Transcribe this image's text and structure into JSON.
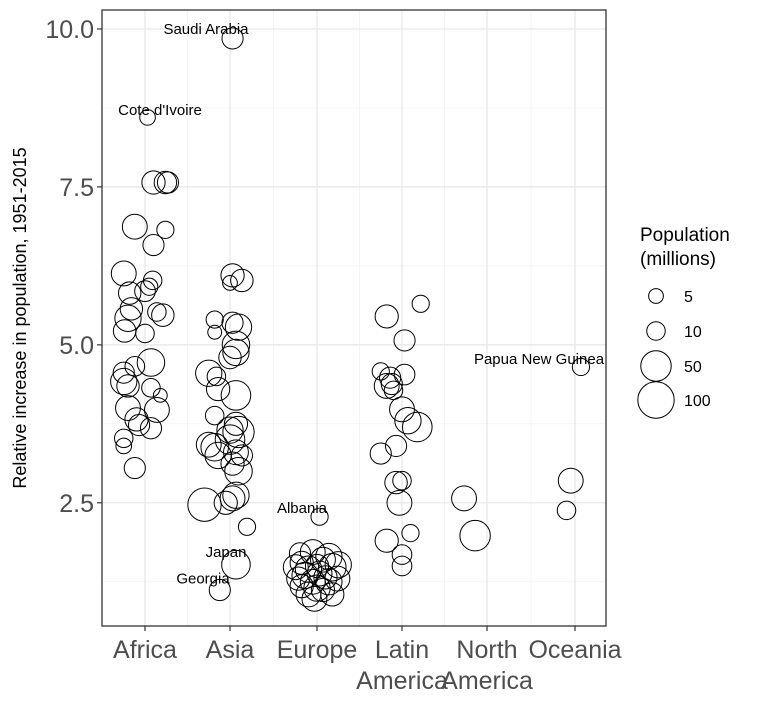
{
  "chart_data": {
    "type": "scatter",
    "ylabel": "Relative increase in population, 1951-2015",
    "xlabel": "",
    "ylim": [
      0.55,
      10.3
    ],
    "yticks": [
      2.5,
      5.0,
      7.5,
      10.0
    ],
    "ytick_labels": [
      "2.5",
      "5.0",
      "7.5",
      "10.0"
    ],
    "categories": [
      {
        "name": "Africa",
        "lines": [
          "Africa"
        ]
      },
      {
        "name": "Asia",
        "lines": [
          "Asia"
        ]
      },
      {
        "name": "Europe",
        "lines": [
          "Europe"
        ]
      },
      {
        "name": "Latin America",
        "lines": [
          "Latin",
          "America"
        ]
      },
      {
        "name": "North America",
        "lines": [
          "North",
          "America"
        ]
      },
      {
        "name": "Oceania",
        "lines": [
          "Oceania"
        ]
      }
    ],
    "grid": true,
    "legend": {
      "title_lines": [
        "Population",
        "(millions)"
      ],
      "position": "right",
      "entries": [
        {
          "label": "5",
          "size": 5
        },
        {
          "label": "10",
          "size": 10
        },
        {
          "label": "50",
          "size": 50
        },
        {
          "label": "100",
          "size": 100
        }
      ]
    },
    "annotations": [
      {
        "label": "Saudi Arabia",
        "category": "Asia",
        "jitter": -0.55,
        "y": 10.0
      },
      {
        "label": "Cote d'Ivoire",
        "category": "Africa",
        "jitter": 0.15,
        "y": 8.72
      },
      {
        "label": "Papua New Guinea",
        "category": "Oceania",
        "jitter": -1.0,
        "y": 4.78
      },
      {
        "label": "Albania",
        "category": "Europe",
        "jitter": -0.25,
        "y": 2.42
      },
      {
        "label": "Japan",
        "category": "Asia",
        "jitter": -0.1,
        "y": 1.72
      },
      {
        "label": "Georgia",
        "category": "Asia",
        "jitter": -0.35,
        "y": 1.3
      }
    ],
    "points": [
      {
        "category": "Africa",
        "jitter": 0.03,
        "y": 8.6,
        "pop": 6
      },
      {
        "category": "Africa",
        "jitter": 0.1,
        "y": 7.57,
        "pop": 20
      },
      {
        "category": "Africa",
        "jitter": 0.24,
        "y": 7.57,
        "pop": 18
      },
      {
        "category": "Africa",
        "jitter": 0.27,
        "y": 7.57,
        "pop": 15
      },
      {
        "category": "Africa",
        "jitter": -0.12,
        "y": 6.87,
        "pop": 25
      },
      {
        "category": "Africa",
        "jitter": 0.24,
        "y": 6.82,
        "pop": 8
      },
      {
        "category": "Africa",
        "jitter": 0.1,
        "y": 6.58,
        "pop": 15
      },
      {
        "category": "Africa",
        "jitter": -0.25,
        "y": 6.13,
        "pop": 25
      },
      {
        "category": "Africa",
        "jitter": 0.09,
        "y": 6.02,
        "pop": 10
      },
      {
        "category": "Africa",
        "jitter": 0.05,
        "y": 5.92,
        "pop": 8
      },
      {
        "category": "Africa",
        "jitter": -0.18,
        "y": 5.82,
        "pop": 18
      },
      {
        "category": "Africa",
        "jitter": 0.0,
        "y": 5.85,
        "pop": 14
      },
      {
        "category": "Africa",
        "jitter": 0.14,
        "y": 5.52,
        "pop": 10
      },
      {
        "category": "Africa",
        "jitter": 0.21,
        "y": 5.47,
        "pop": 18
      },
      {
        "category": "Africa",
        "jitter": -0.16,
        "y": 5.57,
        "pop": 18
      },
      {
        "category": "Africa",
        "jitter": -0.2,
        "y": 5.42,
        "pop": 30
      },
      {
        "category": "Africa",
        "jitter": -0.24,
        "y": 5.22,
        "pop": 18
      },
      {
        "category": "Africa",
        "jitter": 0.0,
        "y": 5.18,
        "pop": 10
      },
      {
        "category": "Africa",
        "jitter": -0.12,
        "y": 4.66,
        "pop": 12
      },
      {
        "category": "Africa",
        "jitter": 0.07,
        "y": 4.72,
        "pop": 35
      },
      {
        "category": "Africa",
        "jitter": -0.25,
        "y": 4.56,
        "pop": 15
      },
      {
        "category": "Africa",
        "jitter": -0.25,
        "y": 4.42,
        "pop": 30
      },
      {
        "category": "Africa",
        "jitter": -0.2,
        "y": 4.35,
        "pop": 18
      },
      {
        "category": "Africa",
        "jitter": 0.07,
        "y": 4.32,
        "pop": 10
      },
      {
        "category": "Africa",
        "jitter": 0.18,
        "y": 4.2,
        "pop": 4
      },
      {
        "category": "Africa",
        "jitter": -0.2,
        "y": 4.0,
        "pop": 25
      },
      {
        "category": "Africa",
        "jitter": 0.14,
        "y": 3.97,
        "pop": 25
      },
      {
        "category": "Africa",
        "jitter": -0.1,
        "y": 3.82,
        "pop": 20
      },
      {
        "category": "Africa",
        "jitter": -0.07,
        "y": 3.73,
        "pop": 15
      },
      {
        "category": "Africa",
        "jitter": 0.07,
        "y": 3.68,
        "pop": 15
      },
      {
        "category": "Africa",
        "jitter": -0.25,
        "y": 3.52,
        "pop": 10
      },
      {
        "category": "Africa",
        "jitter": -0.25,
        "y": 3.4,
        "pop": 6
      },
      {
        "category": "Africa",
        "jitter": -0.12,
        "y": 3.05,
        "pop": 15
      },
      {
        "category": "Asia",
        "jitter": 0.03,
        "y": 9.85,
        "pop": 15
      },
      {
        "category": "Asia",
        "jitter": 0.03,
        "y": 6.1,
        "pop": 20
      },
      {
        "category": "Asia",
        "jitter": 0.14,
        "y": 6.02,
        "pop": 18
      },
      {
        "category": "Asia",
        "jitter": 0.0,
        "y": 5.98,
        "pop": 5
      },
      {
        "category": "Asia",
        "jitter": -0.18,
        "y": 5.4,
        "pop": 8
      },
      {
        "category": "Asia",
        "jitter": 0.03,
        "y": 5.35,
        "pop": 15
      },
      {
        "category": "Asia",
        "jitter": 0.1,
        "y": 5.28,
        "pop": 30
      },
      {
        "category": "Asia",
        "jitter": -0.18,
        "y": 5.2,
        "pop": 4
      },
      {
        "category": "Asia",
        "jitter": 0.07,
        "y": 5.0,
        "pop": 35
      },
      {
        "category": "Asia",
        "jitter": 0.07,
        "y": 4.88,
        "pop": 30
      },
      {
        "category": "Asia",
        "jitter": 0.0,
        "y": 4.8,
        "pop": 18
      },
      {
        "category": "Asia",
        "jitter": -0.25,
        "y": 4.55,
        "pop": 30
      },
      {
        "category": "Asia",
        "jitter": -0.16,
        "y": 4.5,
        "pop": 10
      },
      {
        "category": "Asia",
        "jitter": -0.14,
        "y": 4.3,
        "pop": 20
      },
      {
        "category": "Asia",
        "jitter": 0.07,
        "y": 4.2,
        "pop": 45
      },
      {
        "category": "Asia",
        "jitter": -0.18,
        "y": 3.88,
        "pop": 10
      },
      {
        "category": "Asia",
        "jitter": 0.07,
        "y": 3.75,
        "pop": 20
      },
      {
        "category": "Asia",
        "jitter": 0.0,
        "y": 3.65,
        "pop": 30
      },
      {
        "category": "Asia",
        "jitter": 0.1,
        "y": 3.62,
        "pop": 55
      },
      {
        "category": "Asia",
        "jitter": 0.0,
        "y": 3.5,
        "pop": 45
      },
      {
        "category": "Asia",
        "jitter": -0.25,
        "y": 3.42,
        "pop": 25
      },
      {
        "category": "Asia",
        "jitter": -0.18,
        "y": 3.38,
        "pop": 35
      },
      {
        "category": "Asia",
        "jitter": -0.14,
        "y": 3.25,
        "pop": 30
      },
      {
        "category": "Asia",
        "jitter": 0.07,
        "y": 3.3,
        "pop": 25
      },
      {
        "category": "Asia",
        "jitter": 0.14,
        "y": 3.25,
        "pop": 15
      },
      {
        "category": "Asia",
        "jitter": 0.03,
        "y": 3.12,
        "pop": 20
      },
      {
        "category": "Asia",
        "jitter": 0.1,
        "y": 3.0,
        "pop": 35
      },
      {
        "category": "Asia",
        "jitter": 0.07,
        "y": 2.62,
        "pop": 30
      },
      {
        "category": "Asia",
        "jitter": 0.03,
        "y": 2.57,
        "pop": 25
      },
      {
        "category": "Asia",
        "jitter": -0.05,
        "y": 2.5,
        "pop": 20
      },
      {
        "category": "Asia",
        "jitter": -0.3,
        "y": 2.47,
        "pop": 70
      },
      {
        "category": "Asia",
        "jitter": 0.2,
        "y": 2.12,
        "pop": 8
      },
      {
        "category": "Asia",
        "jitter": 0.07,
        "y": 1.52,
        "pop": 40
      },
      {
        "category": "Asia",
        "jitter": -0.12,
        "y": 1.12,
        "pop": 15
      },
      {
        "category": "Europe",
        "jitter": 0.03,
        "y": 2.28,
        "pop": 8
      },
      {
        "category": "Europe",
        "jitter": -0.2,
        "y": 1.7,
        "pop": 15
      },
      {
        "category": "Europe",
        "jitter": -0.05,
        "y": 1.72,
        "pop": 25
      },
      {
        "category": "Europe",
        "jitter": 0.14,
        "y": 1.65,
        "pop": 30
      },
      {
        "category": "Europe",
        "jitter": -0.18,
        "y": 1.55,
        "pop": 20
      },
      {
        "category": "Europe",
        "jitter": 0.07,
        "y": 1.6,
        "pop": 25
      },
      {
        "category": "Europe",
        "jitter": -0.25,
        "y": 1.48,
        "pop": 25
      },
      {
        "category": "Europe",
        "jitter": -0.1,
        "y": 1.45,
        "pop": 30
      },
      {
        "category": "Europe",
        "jitter": 0.0,
        "y": 1.5,
        "pop": 20
      },
      {
        "category": "Europe",
        "jitter": 0.18,
        "y": 1.48,
        "pop": 35
      },
      {
        "category": "Europe",
        "jitter": 0.25,
        "y": 1.52,
        "pop": 30
      },
      {
        "category": "Europe",
        "jitter": -0.14,
        "y": 1.35,
        "pop": 30
      },
      {
        "category": "Europe",
        "jitter": 0.03,
        "y": 1.38,
        "pop": 25
      },
      {
        "category": "Europe",
        "jitter": 0.1,
        "y": 1.32,
        "pop": 20
      },
      {
        "category": "Europe",
        "jitter": -0.22,
        "y": 1.3,
        "pop": 20
      },
      {
        "category": "Europe",
        "jitter": -0.05,
        "y": 1.25,
        "pop": 25
      },
      {
        "category": "Europe",
        "jitter": 0.14,
        "y": 1.25,
        "pop": 30
      },
      {
        "category": "Europe",
        "jitter": 0.24,
        "y": 1.3,
        "pop": 25
      },
      {
        "category": "Europe",
        "jitter": -0.18,
        "y": 1.18,
        "pop": 20
      },
      {
        "category": "Europe",
        "jitter": 0.0,
        "y": 1.15,
        "pop": 30
      },
      {
        "category": "Europe",
        "jitter": 0.07,
        "y": 1.12,
        "pop": 20
      },
      {
        "category": "Europe",
        "jitter": -0.1,
        "y": 1.05,
        "pop": 25
      },
      {
        "category": "Europe",
        "jitter": 0.18,
        "y": 1.05,
        "pop": 20
      },
      {
        "category": "Europe",
        "jitter": -0.03,
        "y": 0.98,
        "pop": 25
      },
      {
        "category": "Latin America",
        "jitter": 5.5,
        "y": 5.65,
        "pop": 8
      },
      {
        "category": "Latin America",
        "jitter": -0.18,
        "y": 5.45,
        "pop": 20
      },
      {
        "category": "Latin America",
        "jitter": 0.03,
        "y": 5.07,
        "pop": 15
      },
      {
        "category": "Latin America",
        "jitter": -0.25,
        "y": 4.58,
        "pop": 8
      },
      {
        "category": "Latin America",
        "jitter": -0.14,
        "y": 4.48,
        "pop": 15
      },
      {
        "category": "Latin America",
        "jitter": 0.03,
        "y": 4.53,
        "pop": 14
      },
      {
        "category": "Latin America",
        "jitter": -0.18,
        "y": 4.35,
        "pop": 25
      },
      {
        "category": "Latin America",
        "jitter": -0.12,
        "y": 4.38,
        "pop": 15
      },
      {
        "category": "Latin America",
        "jitter": -0.1,
        "y": 4.28,
        "pop": 10
      },
      {
        "category": "Latin America",
        "jitter": 0.0,
        "y": 3.98,
        "pop": 25
      },
      {
        "category": "Latin America",
        "jitter": 0.07,
        "y": 3.8,
        "pop": 30
      },
      {
        "category": "Latin America",
        "jitter": 0.18,
        "y": 3.7,
        "pop": 45
      },
      {
        "category": "Latin America",
        "jitter": -0.07,
        "y": 3.4,
        "pop": 15
      },
      {
        "category": "Latin America",
        "jitter": -0.25,
        "y": 3.28,
        "pop": 15
      },
      {
        "category": "Latin America",
        "jitter": -0.07,
        "y": 2.82,
        "pop": 18
      },
      {
        "category": "Latin America",
        "jitter": 0.0,
        "y": 2.85,
        "pop": 10
      },
      {
        "category": "Latin America",
        "jitter": -0.03,
        "y": 2.5,
        "pop": 25
      },
      {
        "category": "Latin America",
        "jitter": 0.1,
        "y": 2.02,
        "pop": 8
      },
      {
        "category": "Latin America",
        "jitter": -0.18,
        "y": 1.9,
        "pop": 20
      },
      {
        "category": "Latin America",
        "jitter": 0.0,
        "y": 1.68,
        "pop": 12
      },
      {
        "category": "Latin America",
        "jitter": 0.0,
        "y": 1.5,
        "pop": 12
      },
      {
        "category": "North America",
        "jitter": -0.27,
        "y": 2.57,
        "pop": 25
      },
      {
        "category": "North America",
        "jitter": -0.14,
        "y": 1.98,
        "pop": 50
      },
      {
        "category": "Oceania",
        "jitter": 0.07,
        "y": 4.65,
        "pop": 8
      },
      {
        "category": "Oceania",
        "jitter": -0.05,
        "y": 2.85,
        "pop": 25
      },
      {
        "category": "Oceania",
        "jitter": -0.1,
        "y": 2.38,
        "pop": 10
      }
    ]
  }
}
